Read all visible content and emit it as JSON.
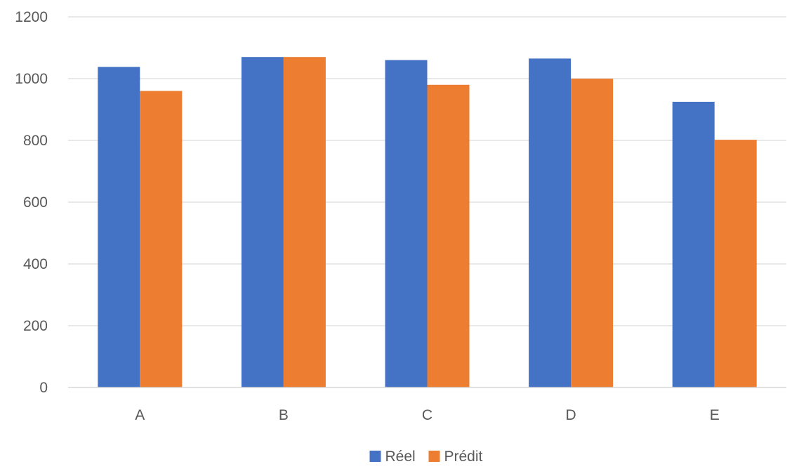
{
  "chart_data": {
    "type": "bar",
    "title": "",
    "xlabel": "",
    "ylabel": "",
    "categories": [
      "A",
      "B",
      "C",
      "D",
      "E"
    ],
    "series": [
      {
        "name": "Réel",
        "color": "#4472c4",
        "values": [
          1038,
          1070,
          1060,
          1065,
          925
        ]
      },
      {
        "name": "Prédit",
        "color": "#ed7d31",
        "values": [
          960,
          1070,
          980,
          1000,
          802
        ]
      }
    ],
    "ylim": [
      0,
      1200
    ],
    "yticks": [
      0,
      200,
      400,
      600,
      800,
      1000,
      1200
    ],
    "ytick_labels": [
      "0",
      "200",
      "400",
      "600",
      "800",
      "1000",
      "1200"
    ],
    "grid": true,
    "legend_position": "bottom"
  }
}
